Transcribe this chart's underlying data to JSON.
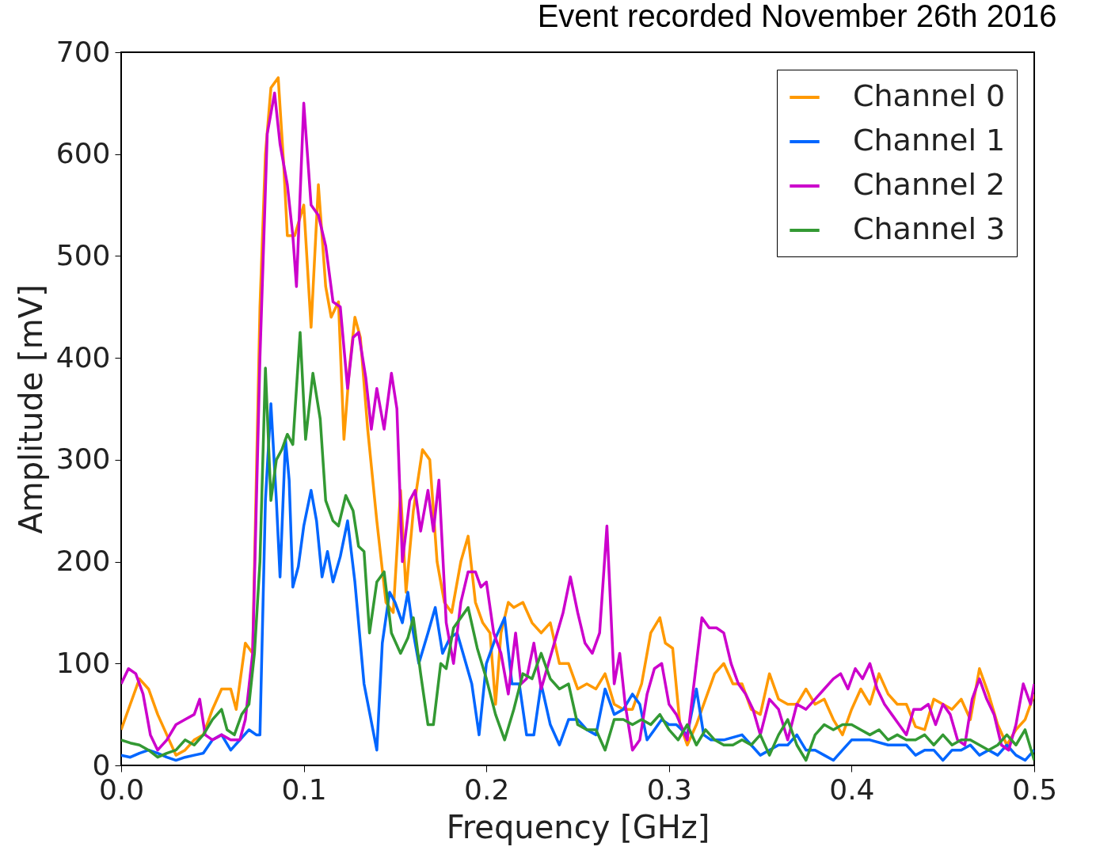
{
  "chart_data": {
    "type": "line",
    "title": "Event recorded November 26th 2016",
    "xlabel": "Frequency [GHz]",
    "ylabel": "Amplitude [mV]",
    "xlim": [
      0,
      0.5
    ],
    "ylim": [
      0,
      700
    ],
    "xticks": [
      {
        "value": 0,
        "label": "0.0"
      },
      0.1,
      0.2,
      0.3,
      0.4,
      0.5
    ],
    "yticks": [
      0,
      100,
      200,
      300,
      400,
      500,
      600,
      700
    ],
    "grid": false,
    "legend": "top right",
    "marker": "none",
    "line_style": "solid",
    "series": [
      {
        "name": "Channel 0",
        "color": "#ff9900",
        "x": [
          0.0,
          0.005,
          0.01,
          0.015,
          0.02,
          0.025,
          0.03,
          0.035,
          0.04,
          0.045,
          0.05,
          0.055,
          0.06,
          0.063,
          0.068,
          0.072,
          0.076,
          0.079,
          0.082,
          0.086,
          0.089,
          0.091,
          0.095,
          0.1,
          0.104,
          0.108,
          0.112,
          0.115,
          0.119,
          0.122,
          0.125,
          0.128,
          0.131,
          0.135,
          0.14,
          0.145,
          0.149,
          0.153,
          0.156,
          0.16,
          0.165,
          0.169,
          0.173,
          0.177,
          0.181,
          0.186,
          0.19,
          0.194,
          0.198,
          0.202,
          0.205,
          0.208,
          0.212,
          0.215,
          0.22,
          0.225,
          0.23,
          0.235,
          0.24,
          0.245,
          0.25,
          0.255,
          0.26,
          0.265,
          0.27,
          0.275,
          0.28,
          0.285,
          0.29,
          0.295,
          0.298,
          0.302,
          0.306,
          0.31,
          0.315,
          0.32,
          0.325,
          0.33,
          0.335,
          0.34,
          0.345,
          0.35,
          0.355,
          0.36,
          0.365,
          0.37,
          0.375,
          0.38,
          0.385,
          0.39,
          0.395,
          0.4,
          0.405,
          0.41,
          0.415,
          0.42,
          0.425,
          0.43,
          0.435,
          0.44,
          0.445,
          0.45,
          0.455,
          0.46,
          0.465,
          0.47,
          0.475,
          0.48,
          0.485,
          0.49,
          0.495,
          0.5
        ],
        "values": [
          35,
          60,
          85,
          75,
          50,
          30,
          10,
          15,
          25,
          30,
          55,
          75,
          75,
          55,
          120,
          110,
          450,
          600,
          665,
          675,
          590,
          520,
          520,
          550,
          430,
          570,
          470,
          440,
          455,
          320,
          390,
          440,
          420,
          330,
          240,
          160,
          150,
          270,
          170,
          250,
          310,
          300,
          200,
          160,
          150,
          200,
          225,
          160,
          140,
          130,
          60,
          130,
          160,
          155,
          160,
          140,
          130,
          140,
          100,
          100,
          75,
          80,
          75,
          90,
          60,
          55,
          55,
          80,
          130,
          145,
          120,
          115,
          40,
          20,
          40,
          65,
          90,
          100,
          80,
          80,
          55,
          50,
          90,
          65,
          60,
          60,
          75,
          60,
          65,
          45,
          30,
          55,
          75,
          60,
          90,
          70,
          60,
          60,
          38,
          35,
          65,
          60,
          55,
          65,
          45,
          95,
          70,
          40,
          20,
          35,
          45,
          70
        ]
      },
      {
        "name": "Channel 1",
        "color": "#0066ff",
        "x": [
          0.0,
          0.005,
          0.01,
          0.015,
          0.02,
          0.025,
          0.03,
          0.035,
          0.04,
          0.045,
          0.05,
          0.055,
          0.06,
          0.065,
          0.07,
          0.074,
          0.076,
          0.079,
          0.082,
          0.085,
          0.087,
          0.09,
          0.092,
          0.094,
          0.097,
          0.1,
          0.104,
          0.107,
          0.11,
          0.113,
          0.116,
          0.12,
          0.124,
          0.128,
          0.133,
          0.14,
          0.143,
          0.147,
          0.15,
          0.154,
          0.157,
          0.16,
          0.163,
          0.168,
          0.172,
          0.176,
          0.18,
          0.184,
          0.188,
          0.192,
          0.196,
          0.2,
          0.205,
          0.21,
          0.214,
          0.218,
          0.222,
          0.226,
          0.23,
          0.235,
          0.24,
          0.245,
          0.25,
          0.255,
          0.26,
          0.265,
          0.27,
          0.275,
          0.28,
          0.284,
          0.288,
          0.292,
          0.296,
          0.3,
          0.304,
          0.31,
          0.315,
          0.319,
          0.323,
          0.33,
          0.34,
          0.345,
          0.35,
          0.355,
          0.36,
          0.365,
          0.37,
          0.375,
          0.38,
          0.385,
          0.39,
          0.395,
          0.4,
          0.405,
          0.41,
          0.42,
          0.43,
          0.435,
          0.44,
          0.445,
          0.45,
          0.455,
          0.46,
          0.465,
          0.47,
          0.475,
          0.48,
          0.485,
          0.49,
          0.495,
          0.5
        ],
        "values": [
          10,
          8,
          12,
          15,
          12,
          8,
          5,
          8,
          10,
          12,
          25,
          30,
          15,
          25,
          35,
          30,
          30,
          260,
          355,
          260,
          185,
          320,
          280,
          175,
          195,
          235,
          270,
          240,
          185,
          210,
          180,
          205,
          240,
          180,
          80,
          15,
          120,
          170,
          160,
          140,
          170,
          130,
          100,
          130,
          155,
          110,
          125,
          130,
          105,
          80,
          30,
          100,
          125,
          145,
          80,
          80,
          30,
          30,
          80,
          40,
          20,
          45,
          45,
          35,
          30,
          75,
          50,
          55,
          70,
          60,
          25,
          35,
          45,
          40,
          40,
          30,
          75,
          30,
          25,
          25,
          30,
          20,
          10,
          15,
          20,
          20,
          30,
          15,
          15,
          10,
          5,
          15,
          25,
          25,
          25,
          20,
          20,
          10,
          15,
          15,
          5,
          15,
          15,
          20,
          10,
          15,
          10,
          20,
          10,
          5,
          15
        ]
      },
      {
        "name": "Channel 2",
        "color": "#cc00cc",
        "x": [
          0.0,
          0.004,
          0.008,
          0.012,
          0.016,
          0.02,
          0.025,
          0.03,
          0.035,
          0.04,
          0.043,
          0.046,
          0.05,
          0.055,
          0.06,
          0.065,
          0.068,
          0.072,
          0.076,
          0.08,
          0.084,
          0.087,
          0.091,
          0.094,
          0.096,
          0.1,
          0.104,
          0.108,
          0.112,
          0.116,
          0.12,
          0.124,
          0.127,
          0.13,
          0.134,
          0.137,
          0.14,
          0.144,
          0.148,
          0.151,
          0.154,
          0.158,
          0.161,
          0.164,
          0.168,
          0.171,
          0.174,
          0.178,
          0.182,
          0.186,
          0.19,
          0.194,
          0.197,
          0.2,
          0.204,
          0.208,
          0.212,
          0.216,
          0.219,
          0.222,
          0.226,
          0.23,
          0.234,
          0.238,
          0.242,
          0.246,
          0.25,
          0.254,
          0.258,
          0.262,
          0.266,
          0.27,
          0.273,
          0.276,
          0.28,
          0.284,
          0.288,
          0.292,
          0.296,
          0.3,
          0.304,
          0.31,
          0.314,
          0.318,
          0.322,
          0.326,
          0.33,
          0.334,
          0.338,
          0.342,
          0.346,
          0.35,
          0.355,
          0.36,
          0.365,
          0.37,
          0.375,
          0.38,
          0.385,
          0.39,
          0.394,
          0.398,
          0.402,
          0.406,
          0.41,
          0.414,
          0.418,
          0.422,
          0.426,
          0.43,
          0.434,
          0.438,
          0.442,
          0.446,
          0.45,
          0.454,
          0.458,
          0.462,
          0.466,
          0.47,
          0.474,
          0.478,
          0.482,
          0.486,
          0.49,
          0.494,
          0.498,
          0.5
        ],
        "values": [
          80,
          95,
          90,
          70,
          30,
          15,
          25,
          40,
          45,
          50,
          65,
          30,
          25,
          30,
          25,
          25,
          45,
          110,
          400,
          620,
          660,
          610,
          570,
          520,
          470,
          650,
          550,
          540,
          510,
          455,
          450,
          370,
          420,
          425,
          380,
          330,
          370,
          330,
          385,
          350,
          200,
          260,
          270,
          230,
          270,
          230,
          280,
          140,
          100,
          160,
          190,
          190,
          175,
          180,
          130,
          110,
          70,
          130,
          80,
          85,
          120,
          75,
          100,
          125,
          150,
          185,
          150,
          120,
          110,
          130,
          235,
          80,
          110,
          60,
          15,
          25,
          70,
          95,
          100,
          60,
          50,
          25,
          85,
          145,
          135,
          135,
          130,
          100,
          80,
          70,
          55,
          30,
          65,
          55,
          25,
          60,
          55,
          65,
          75,
          85,
          90,
          75,
          95,
          85,
          100,
          75,
          60,
          50,
          40,
          30,
          55,
          55,
          60,
          40,
          60,
          50,
          25,
          20,
          65,
          85,
          65,
          50,
          20,
          15,
          40,
          80,
          60,
          80
        ]
      },
      {
        "name": "Channel 3",
        "color": "#339933",
        "x": [
          0.0,
          0.005,
          0.01,
          0.015,
          0.02,
          0.025,
          0.03,
          0.035,
          0.04,
          0.045,
          0.05,
          0.055,
          0.058,
          0.062,
          0.066,
          0.07,
          0.073,
          0.076,
          0.079,
          0.082,
          0.085,
          0.088,
          0.091,
          0.094,
          0.098,
          0.101,
          0.105,
          0.109,
          0.112,
          0.116,
          0.119,
          0.123,
          0.127,
          0.13,
          0.133,
          0.136,
          0.14,
          0.144,
          0.148,
          0.153,
          0.157,
          0.16,
          0.164,
          0.168,
          0.171,
          0.175,
          0.178,
          0.182,
          0.186,
          0.19,
          0.195,
          0.2,
          0.205,
          0.21,
          0.215,
          0.22,
          0.225,
          0.23,
          0.235,
          0.24,
          0.245,
          0.25,
          0.255,
          0.26,
          0.265,
          0.27,
          0.275,
          0.28,
          0.285,
          0.29,
          0.295,
          0.3,
          0.305,
          0.31,
          0.315,
          0.32,
          0.325,
          0.33,
          0.335,
          0.34,
          0.345,
          0.35,
          0.355,
          0.36,
          0.365,
          0.37,
          0.375,
          0.38,
          0.385,
          0.39,
          0.395,
          0.4,
          0.405,
          0.41,
          0.415,
          0.42,
          0.425,
          0.43,
          0.435,
          0.44,
          0.445,
          0.45,
          0.455,
          0.46,
          0.465,
          0.47,
          0.475,
          0.48,
          0.485,
          0.49,
          0.495,
          0.5
        ],
        "values": [
          25,
          22,
          20,
          15,
          8,
          12,
          15,
          25,
          20,
          30,
          45,
          55,
          35,
          30,
          50,
          60,
          110,
          200,
          390,
          260,
          300,
          310,
          325,
          315,
          425,
          320,
          385,
          340,
          260,
          240,
          235,
          265,
          250,
          215,
          210,
          130,
          180,
          190,
          130,
          110,
          125,
          145,
          90,
          40,
          40,
          100,
          95,
          135,
          145,
          155,
          115,
          85,
          50,
          25,
          55,
          90,
          85,
          110,
          85,
          75,
          80,
          40,
          35,
          35,
          15,
          45,
          45,
          40,
          45,
          40,
          50,
          35,
          25,
          40,
          20,
          35,
          25,
          20,
          20,
          25,
          20,
          30,
          10,
          30,
          45,
          20,
          5,
          30,
          40,
          35,
          40,
          40,
          35,
          30,
          35,
          25,
          30,
          25,
          25,
          30,
          20,
          30,
          20,
          25,
          25,
          20,
          15,
          20,
          30,
          20,
          35,
          5
        ]
      }
    ]
  }
}
